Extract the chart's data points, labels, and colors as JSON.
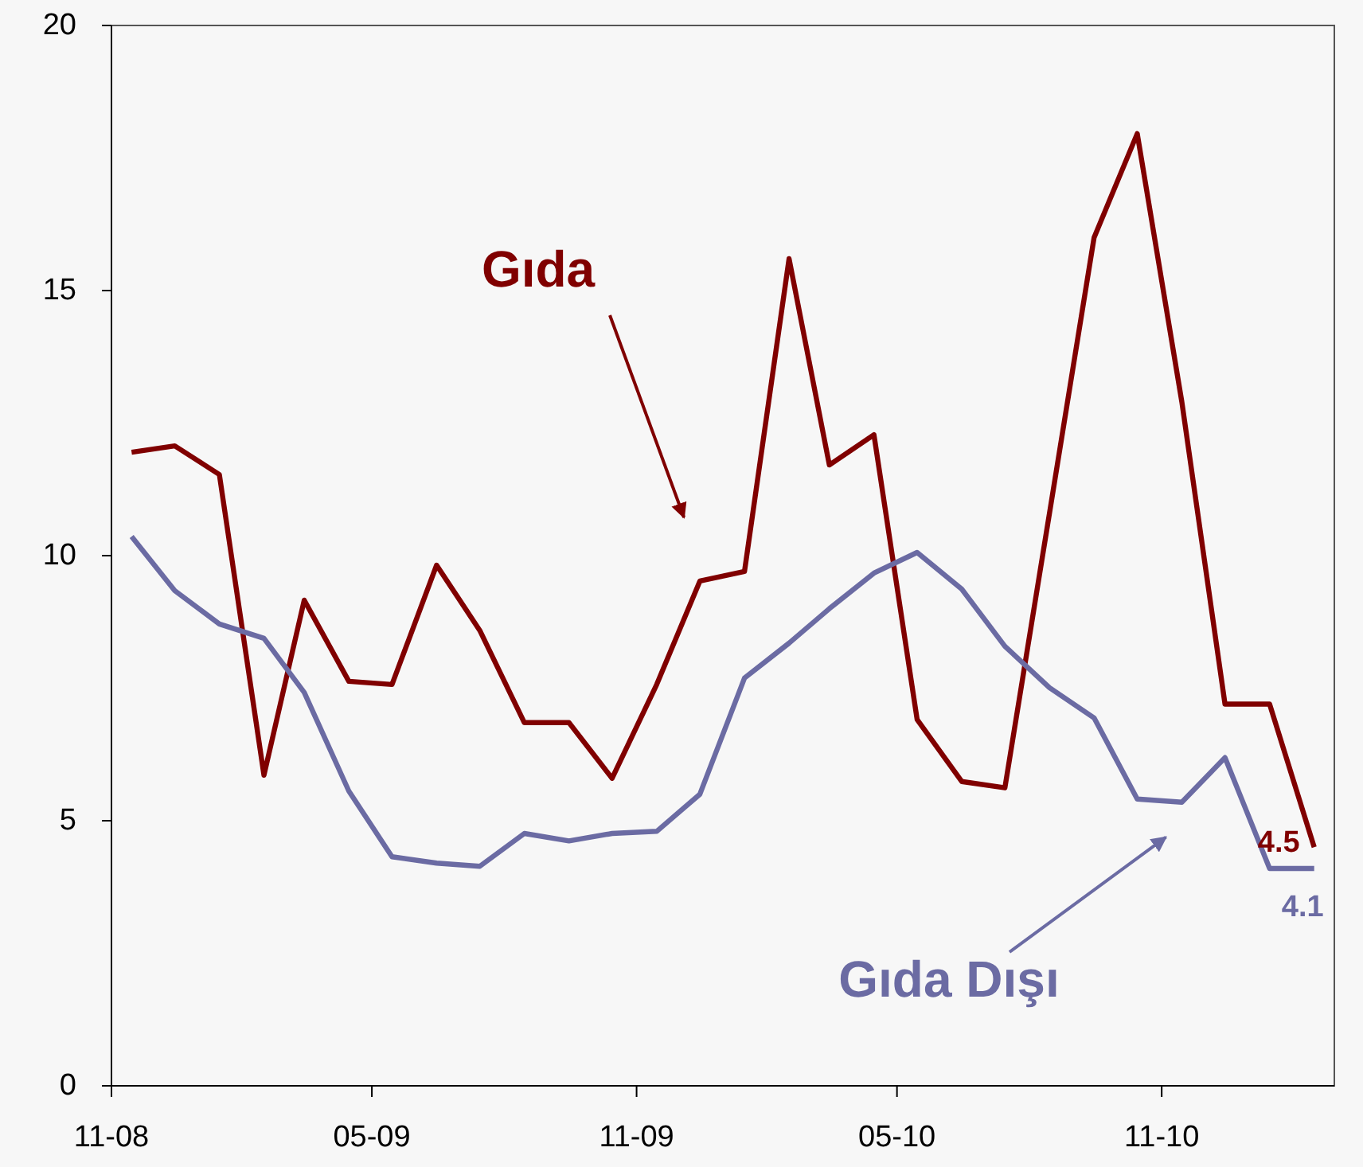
{
  "chart_data": {
    "type": "line",
    "x": [
      "2008-11-15",
      "2008-12-15",
      "2009-01-15",
      "2009-02-15",
      "2009-03-15",
      "2009-04-15",
      "2009-05-15",
      "2009-06-15",
      "2009-07-15",
      "2009-08-15",
      "2009-09-15",
      "2009-10-15",
      "2009-11-15",
      "2009-12-15",
      "2010-01-15",
      "2010-02-15",
      "2010-03-15",
      "2010-04-15",
      "2010-05-15",
      "2010-06-15",
      "2010-07-15",
      "2010-08-15",
      "2010-09-15",
      "2010-10-15",
      "2010-11-15",
      "2010-12-15",
      "2011-01-15",
      "2011-02-15"
    ],
    "xlim": [
      "2008-11-01",
      "2011-03-01"
    ],
    "xticks": [
      {
        "value": "2008-11-01",
        "label": "11-08"
      },
      {
        "value": "2009-05-01",
        "label": "05-09"
      },
      {
        "value": "2009-11-01",
        "label": "11-09"
      },
      {
        "value": "2010-05-01",
        "label": "05-10"
      },
      {
        "value": "2010-11-01",
        "label": "11-10"
      }
    ],
    "ylim": [
      0,
      20
    ],
    "yticks": [
      0,
      5,
      10,
      15,
      20
    ],
    "series": [
      {
        "name": "Gıda",
        "color": "#800000",
        "values": [
          11.95,
          12.07,
          11.53,
          5.86,
          9.16,
          7.63,
          7.57,
          9.82,
          8.59,
          6.85,
          6.85,
          5.8,
          7.57,
          9.52,
          9.7,
          15.6,
          11.71,
          12.28,
          6.91,
          5.74,
          5.62,
          10.8,
          16.0,
          17.96,
          12.9,
          7.2,
          7.2,
          4.5
        ],
        "value_labels": [
          null,
          null,
          null,
          null,
          null,
          null,
          null,
          null,
          null,
          null,
          null,
          null,
          null,
          null,
          null,
          null,
          null,
          null,
          null,
          null,
          null,
          null,
          null,
          null,
          null,
          null,
          null,
          "4.5"
        ]
      },
      {
        "name": "Gıda Dışı",
        "color": "#6b6ba3",
        "values": [
          10.36,
          9.34,
          8.71,
          8.44,
          7.42,
          5.56,
          4.32,
          4.2,
          4.14,
          4.76,
          4.62,
          4.76,
          4.8,
          5.5,
          7.69,
          8.35,
          9.0,
          9.67,
          10.06,
          9.37,
          8.29,
          7.51,
          6.94,
          5.41,
          5.35,
          6.19,
          4.1,
          4.1
        ],
        "value_labels": [
          null,
          null,
          null,
          null,
          null,
          null,
          null,
          null,
          null,
          null,
          null,
          null,
          null,
          null,
          null,
          null,
          null,
          null,
          null,
          null,
          null,
          null,
          null,
          null,
          null,
          null,
          null,
          "4.1"
        ]
      }
    ]
  }
}
